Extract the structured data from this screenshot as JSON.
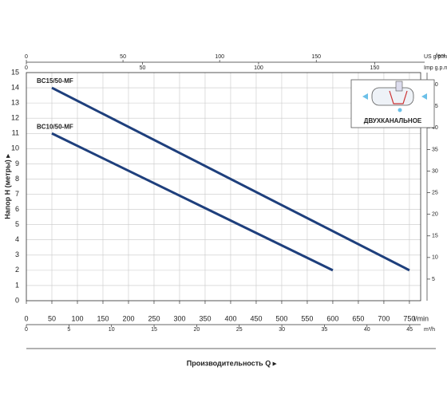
{
  "chart_data": {
    "type": "line",
    "y_label": "Напор H (метры) ▸",
    "x_label": "Производительность Q ▸",
    "x_unit": "l/min",
    "xlim": [
      0,
      772
    ],
    "xticks": [
      0,
      50,
      100,
      150,
      200,
      250,
      300,
      350,
      400,
      450,
      500,
      550,
      600,
      650,
      700,
      750
    ],
    "ylim": [
      0,
      15
    ],
    "yticks": [
      0,
      1,
      2,
      3,
      4,
      5,
      6,
      7,
      8,
      9,
      10,
      11,
      12,
      13,
      14,
      15
    ],
    "y2_unit": "feet",
    "y2lim": [
      0,
      52.8
    ],
    "y2ticks": [
      5,
      10,
      15,
      20,
      25,
      30,
      35,
      40,
      45,
      50
    ],
    "extra_x_axes": [
      {
        "unit": "US g.p.m.",
        "xlim": [
          0,
          204
        ],
        "xticks": [
          0,
          50,
          100,
          150
        ]
      },
      {
        "unit": "Imp g.p.m.",
        "xlim": [
          0,
          169.8
        ],
        "xticks": [
          0,
          50,
          100,
          150
        ]
      },
      {
        "unit": "m³/h",
        "xlim": [
          0,
          46.3
        ],
        "xticks": [
          0,
          5,
          10,
          15,
          20,
          25,
          30,
          35,
          40,
          45
        ]
      }
    ],
    "grid": true,
    "series": [
      {
        "name": "BC15/50-MF",
        "color": "#1e3f7c",
        "x": [
          50,
          750
        ],
        "values": [
          14,
          2
        ]
      },
      {
        "name": "BC10/50-MF",
        "color": "#1e3f7c",
        "x": [
          50,
          600
        ],
        "values": [
          11,
          2
        ]
      }
    ],
    "inset_label": "ДВУХКАНАЛЬНОЕ"
  }
}
